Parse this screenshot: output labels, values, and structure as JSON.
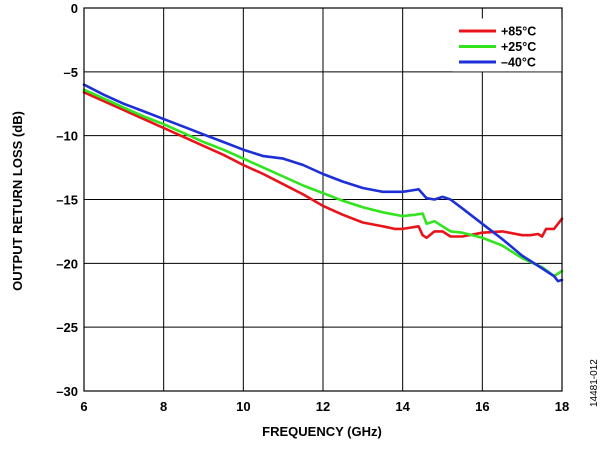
{
  "figure_id": "14481-012",
  "chart_data": {
    "type": "line",
    "title": "",
    "xlabel": "FREQUENCY (GHz)",
    "ylabel": "OUTPUT RETURN LOSS (dB)",
    "xlim": [
      6,
      18
    ],
    "ylim": [
      -30,
      0
    ],
    "x_ticks": [
      6,
      8,
      10,
      12,
      14,
      16,
      18
    ],
    "x_tick_labels": [
      "6",
      "8",
      "10",
      "12",
      "14",
      "16",
      "18"
    ],
    "y_ticks": [
      0,
      -5,
      -10,
      -15,
      -20,
      -25,
      -30
    ],
    "y_tick_labels": [
      "0",
      "–5",
      "–10",
      "–15",
      "–20",
      "–25",
      "–30"
    ],
    "grid": true,
    "legend_position": "top-right",
    "series": [
      {
        "name": "+85°C",
        "color": "#e8141b",
        "x": [
          6.0,
          6.5,
          7.0,
          7.5,
          8.0,
          8.5,
          9.0,
          9.5,
          10.0,
          10.5,
          11.0,
          11.5,
          12.0,
          12.5,
          13.0,
          13.5,
          13.8,
          14.0,
          14.2,
          14.4,
          14.5,
          14.6,
          14.8,
          15.0,
          15.2,
          15.5,
          16.0,
          16.5,
          17.0,
          17.2,
          17.4,
          17.5,
          17.6,
          17.8,
          18.0
        ],
        "y": [
          -6.6,
          -7.3,
          -8.0,
          -8.7,
          -9.4,
          -10.1,
          -10.8,
          -11.5,
          -12.3,
          -13.0,
          -13.8,
          -14.6,
          -15.5,
          -16.2,
          -16.8,
          -17.1,
          -17.3,
          -17.3,
          -17.2,
          -17.1,
          -17.8,
          -18.0,
          -17.5,
          -17.5,
          -17.9,
          -17.9,
          -17.6,
          -17.5,
          -17.8,
          -17.8,
          -17.7,
          -17.9,
          -17.3,
          -17.3,
          -16.5
        ]
      },
      {
        "name": "+25°C",
        "color": "#31e41d",
        "x": [
          6.0,
          6.5,
          7.0,
          7.5,
          8.0,
          8.5,
          9.0,
          9.5,
          10.0,
          10.5,
          11.0,
          11.5,
          12.0,
          12.5,
          13.0,
          13.5,
          14.0,
          14.3,
          14.5,
          14.6,
          14.8,
          15.0,
          15.2,
          15.5,
          16.0,
          16.5,
          17.0,
          17.5,
          17.8,
          18.0
        ],
        "y": [
          -6.4,
          -7.1,
          -7.8,
          -8.5,
          -9.1,
          -9.8,
          -10.5,
          -11.1,
          -11.8,
          -12.5,
          -13.2,
          -13.9,
          -14.5,
          -15.1,
          -15.6,
          -16.0,
          -16.3,
          -16.2,
          -16.1,
          -16.9,
          -16.7,
          -17.1,
          -17.5,
          -17.6,
          -18.0,
          -18.6,
          -19.6,
          -20.3,
          -21.0,
          -20.6
        ]
      },
      {
        "name": "–40°C",
        "color": "#1d2fd6",
        "x": [
          6.0,
          6.5,
          7.0,
          7.5,
          8.0,
          8.5,
          9.0,
          9.5,
          10.0,
          10.5,
          11.0,
          11.5,
          12.0,
          12.5,
          13.0,
          13.5,
          14.0,
          14.2,
          14.4,
          14.6,
          14.8,
          15.0,
          15.2,
          15.5,
          16.0,
          16.5,
          17.0,
          17.5,
          17.8,
          17.9,
          18.0
        ],
        "y": [
          -6.0,
          -6.8,
          -7.5,
          -8.1,
          -8.7,
          -9.3,
          -9.9,
          -10.5,
          -11.1,
          -11.6,
          -11.8,
          -12.3,
          -13.0,
          -13.6,
          -14.1,
          -14.4,
          -14.4,
          -14.3,
          -14.2,
          -14.9,
          -15.0,
          -14.8,
          -15.0,
          -15.7,
          -16.9,
          -18.1,
          -19.4,
          -20.4,
          -21.0,
          -21.4,
          -21.3
        ]
      }
    ]
  }
}
